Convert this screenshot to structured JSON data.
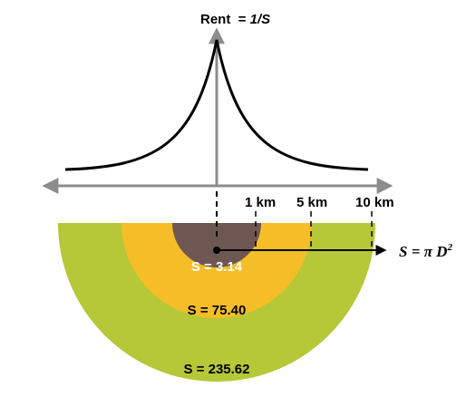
{
  "rent_label": {
    "prefix": "Rent  = ",
    "formula": "1/S"
  },
  "distance_labels": [
    "1 km",
    "5 km",
    "10 km"
  ],
  "area_formula": {
    "prefix": "S = π D",
    "exponent": "2"
  },
  "zones": [
    {
      "label": "S = 3.14",
      "color": "#6e5753"
    },
    {
      "label": "S = 75.40",
      "color": "#f5bd28"
    },
    {
      "label": "S = 235.62",
      "color": "#b6c737"
    }
  ],
  "colors": {
    "axis": "#8c8c8c",
    "curve": "#000000",
    "tick": "#000000"
  }
}
